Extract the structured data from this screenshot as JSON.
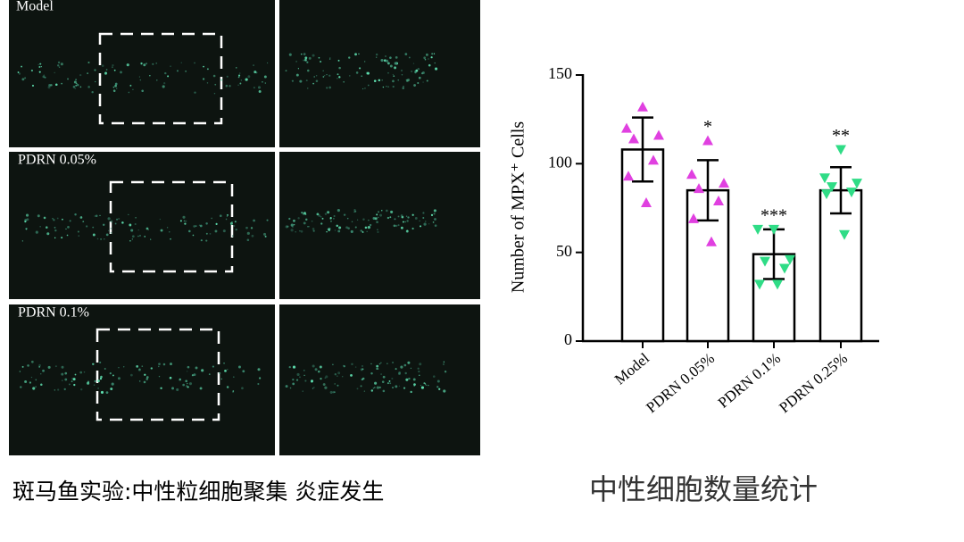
{
  "panels": [
    {
      "label": "Model"
    },
    {
      "label": "PDRN 0.05%"
    },
    {
      "label": "PDRN 0.1%"
    }
  ],
  "captions": {
    "left": "斑马鱼实验:中性粒细胞聚集 炎症发生",
    "right": "中性细胞数量统计"
  },
  "chart_data": {
    "type": "bar",
    "y_label": "Number of MPX⁺ Cells",
    "categories": [
      "Model",
      "PDRN 0.05%",
      "PDRN 0.1%",
      "PDRN 0.25%"
    ],
    "values": [
      108,
      85,
      49,
      85
    ],
    "errors": [
      18,
      17,
      14,
      13
    ],
    "significance": [
      null,
      "*",
      "***",
      "**"
    ],
    "points": [
      [
        132,
        120,
        116,
        114,
        102,
        93,
        78
      ],
      [
        113,
        94,
        89,
        86,
        79,
        69,
        56
      ],
      [
        63,
        63,
        46,
        45,
        41,
        32,
        32
      ],
      [
        108,
        92,
        89,
        87,
        84,
        83,
        60
      ]
    ],
    "point_colors": [
      "#e040e0",
      "#e040e0",
      "#2fdc86",
      "#2fdc86"
    ],
    "point_markers": [
      "triangle-up",
      "triangle-up",
      "triangle-down",
      "triangle-down"
    ],
    "color": "#ffffff",
    "ylim": [
      0,
      150
    ],
    "yticks": [
      0,
      50,
      100,
      150
    ],
    "grid": false
  }
}
